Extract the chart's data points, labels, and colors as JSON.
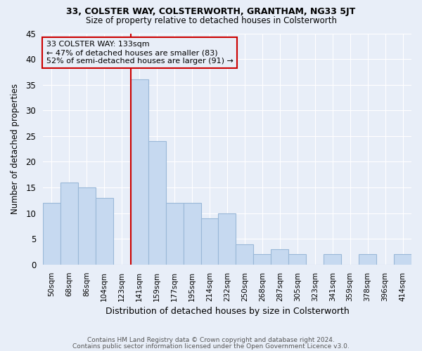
{
  "title_line1": "33, COLSTER WAY, COLSTERWORTH, GRANTHAM, NG33 5JT",
  "title_line2": "Size of property relative to detached houses in Colsterworth",
  "xlabel": "Distribution of detached houses by size in Colsterworth",
  "ylabel": "Number of detached properties",
  "footnote1": "Contains HM Land Registry data © Crown copyright and database right 2024.",
  "footnote2": "Contains public sector information licensed under the Open Government Licence v3.0.",
  "categories": [
    "50sqm",
    "68sqm",
    "86sqm",
    "104sqm",
    "123sqm",
    "141sqm",
    "159sqm",
    "177sqm",
    "195sqm",
    "214sqm",
    "232sqm",
    "250sqm",
    "268sqm",
    "287sqm",
    "305sqm",
    "323sqm",
    "341sqm",
    "359sqm",
    "378sqm",
    "396sqm",
    "414sqm"
  ],
  "values": [
    12,
    16,
    15,
    13,
    0,
    36,
    24,
    12,
    12,
    9,
    10,
    4,
    2,
    3,
    2,
    0,
    2,
    0,
    2,
    0,
    2
  ],
  "bar_color": "#c6d9f0",
  "bar_edge_color": "#9ab8d8",
  "vline_x_index": 5,
  "vline_color": "#cc0000",
  "annotation_box_text": "33 COLSTER WAY: 133sqm\n← 47% of detached houses are smaller (83)\n52% of semi-detached houses are larger (91) →",
  "annotation_box_color": "#cc0000",
  "background_color": "#e8eef8",
  "plot_bg_color": "#e8eef8",
  "ylim": [
    0,
    45
  ],
  "yticks": [
    0,
    5,
    10,
    15,
    20,
    25,
    30,
    35,
    40,
    45
  ],
  "grid_color": "#ffffff"
}
